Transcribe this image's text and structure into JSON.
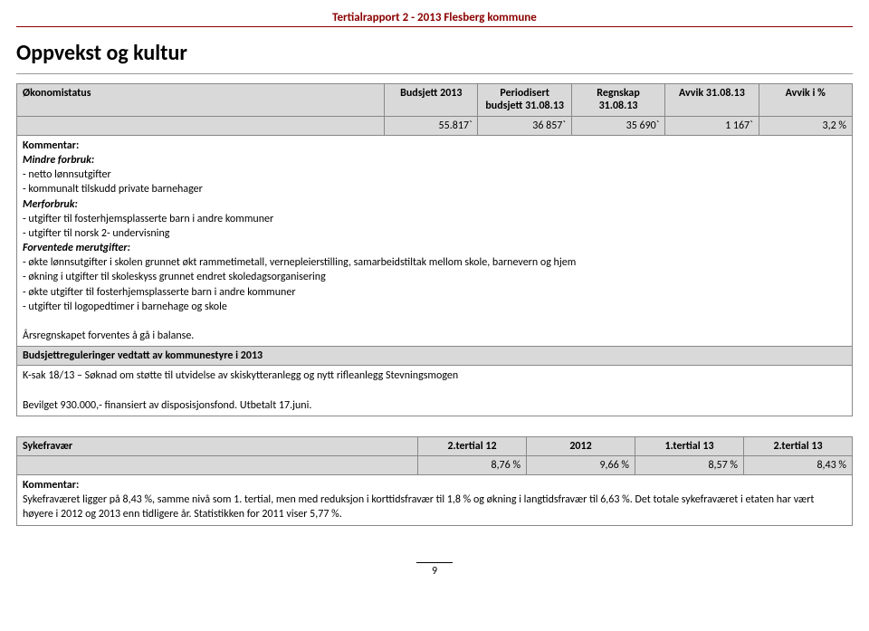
{
  "header": {
    "doc_title": "Tertialrapport 2 - 2013 Flesberg kommune",
    "section_title": "Oppvekst og kultur",
    "page_number": "9"
  },
  "econ": {
    "columns": [
      "Økonomistatus",
      "Budsjett 2013",
      "Periodisert budsjett 31.08.13",
      "Regnskap 31.08.13",
      "Avvik 31.08.13",
      "Avvik i %"
    ],
    "row": [
      "",
      "55.817`",
      "36 857`",
      "35 690`",
      "1 167`",
      "3,2 %"
    ],
    "kommentar_label": "Kommentar:",
    "mindre_forbruk_label": "Mindre forbruk:",
    "mindre_forbruk_items": [
      "-  netto lønnsutgifter",
      "-  kommunalt tilskudd private barnehager"
    ],
    "merforbruk_label": "Merforbruk:",
    "merforbruk_items": [
      "- utgifter til fosterhjemsplasserte barn i andre kommuner",
      "- utgifter til norsk 2- undervisning"
    ],
    "forventede_label": "Forventede merutgifter:",
    "forventede_items": [
      "- økte lønnsutgifter i skolen grunnet økt rammetimetall, vernepleierstilling, samarbeidstiltak mellom skole, barnevern og hjem",
      "- økning i utgifter til skoleskyss grunnet endret skoledagsorganisering",
      "- økte utgifter til fosterhjemsplasserte barn i andre kommuner",
      "- utgifter til logopedtimer i barnehage og skole"
    ],
    "balance_text": "Årsregnskapet forventes å gå i balanse.",
    "budreg_header": "Budsjettreguleringer vedtatt av kommunestyre i 2013",
    "ksak_text": "K-sak 18/13 – Søknad om støtte til utvidelse av skiskytteranlegg og nytt rifleanlegg Stevningsmogen",
    "bevilget_text": "Bevilget 930.000,- finansiert av disposisjonsfond. Utbetalt 17.juni."
  },
  "syke": {
    "columns": [
      "Sykefravær",
      "2.tertial 12",
      "2012",
      "1.tertial 13",
      "2.tertial 13"
    ],
    "row": [
      "",
      "8,76 %",
      "9,66 %",
      "8,57 %",
      "8,43 %"
    ],
    "kommentar_label": "Kommentar:",
    "kommentar_text": "Sykefraværet ligger på 8,43 %, samme nivå som 1. tertial, men med reduksjon i korttidsfravær til 1,8 % og økning i langtidsfravær til 6,63 %. Det totale sykefraværet i etaten har vært høyere i 2012 og 2013 enn tidligere år.  Statistikken for 2011 viser 5,77 %."
  }
}
